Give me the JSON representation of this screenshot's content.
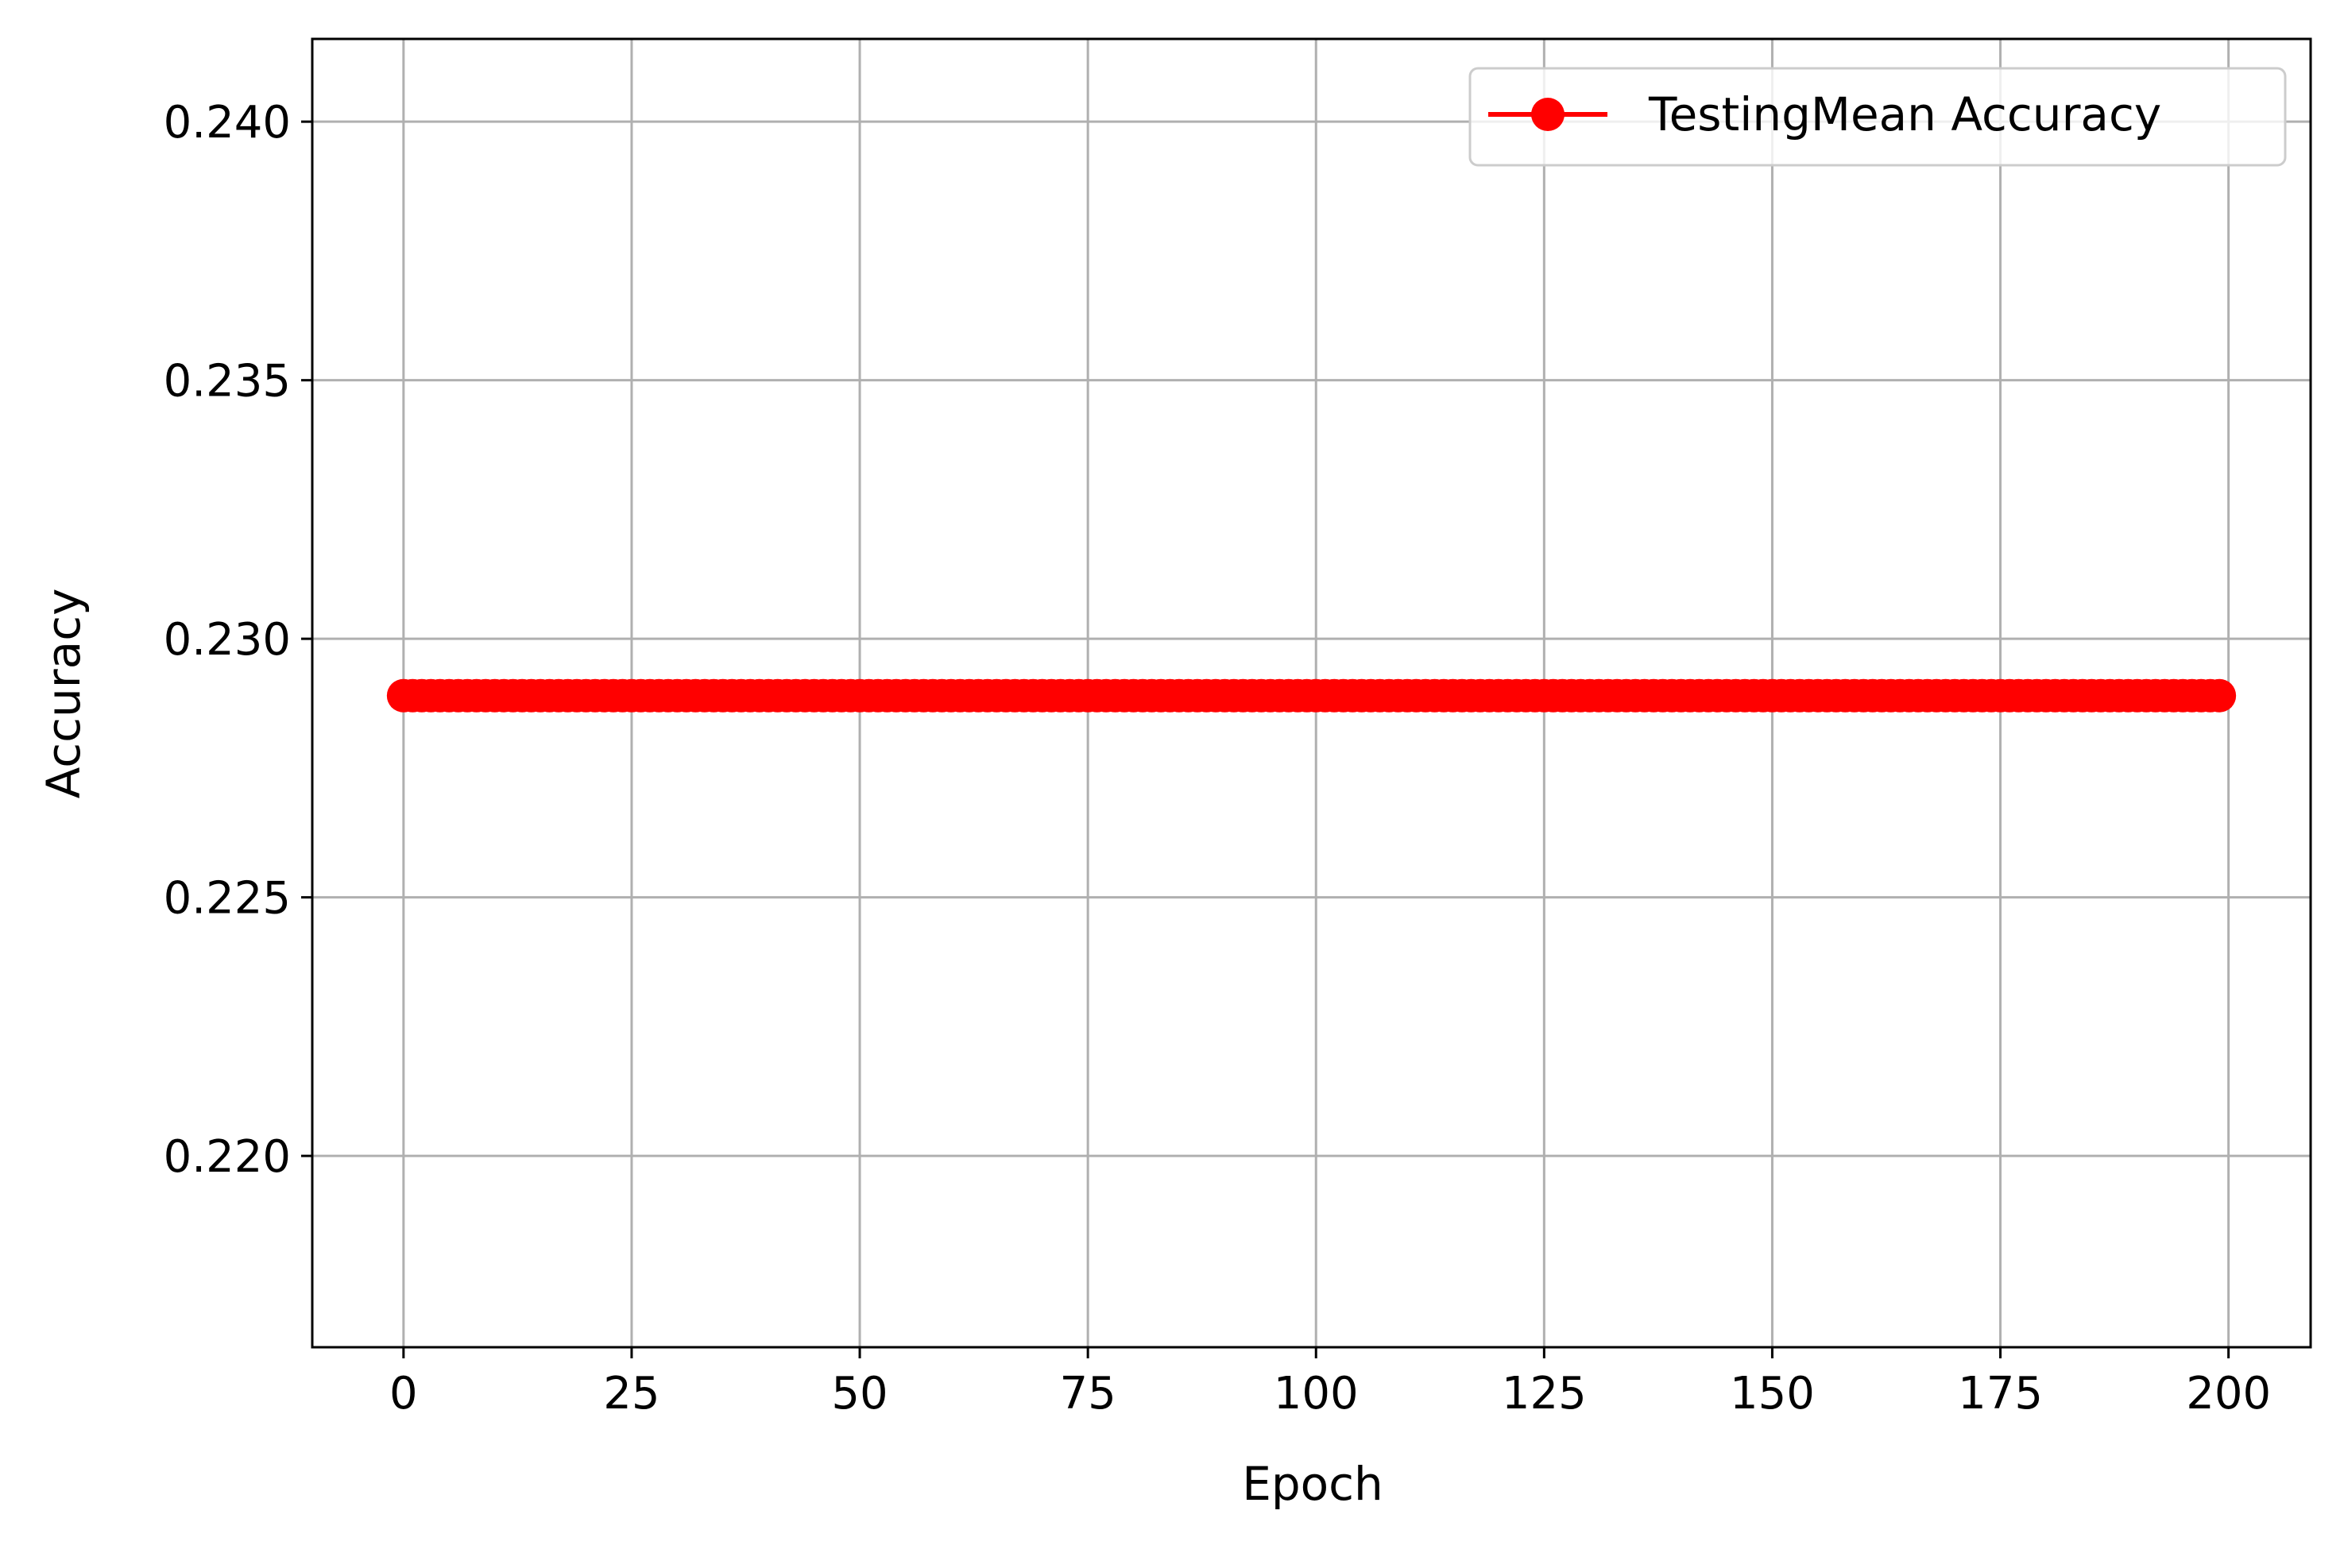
{
  "chart_data": {
    "type": "line",
    "title": "",
    "xlabel": "Epoch",
    "ylabel": "Accuracy",
    "xlim": [
      -10,
      209
    ],
    "ylim": [
      0.2163,
      0.2416
    ],
    "xticks": [
      0,
      25,
      50,
      75,
      100,
      125,
      150,
      175,
      200
    ],
    "xtick_labels": [
      "0",
      "25",
      "50",
      "75",
      "100",
      "125",
      "150",
      "175",
      "200"
    ],
    "yticks": [
      0.22,
      0.225,
      0.23,
      0.235,
      0.24
    ],
    "ytick_labels": [
      "0.220",
      "0.225",
      "0.230",
      "0.235",
      "0.240"
    ],
    "grid": true,
    "legend_position": "upper right",
    "series": [
      {
        "name": "TestingMean Accuracy",
        "color": "#ff0000",
        "marker": "circle",
        "x_start": 0,
        "x_end": 199,
        "x_step": 1,
        "constant_value": 0.2289
      }
    ]
  }
}
